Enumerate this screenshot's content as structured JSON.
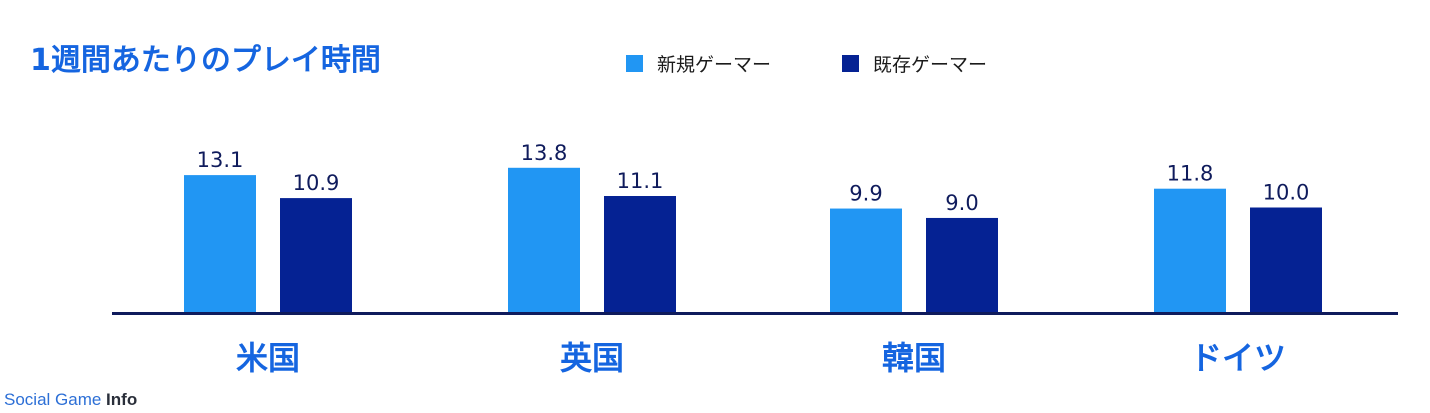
{
  "chart_data": {
    "type": "bar",
    "title": "1週間あたりのプレイ時間",
    "categories": [
      "米国",
      "英国",
      "韓国",
      "ドイツ"
    ],
    "series": [
      {
        "name": "新規ゲーマー",
        "values": [
          13.1,
          13.8,
          9.9,
          11.8
        ],
        "color": "#2196f3"
      },
      {
        "name": "既存ゲーマー",
        "values": [
          10.9,
          11.1,
          9.0,
          10.0
        ],
        "color": "#052293"
      }
    ],
    "value_labels": [
      [
        "13.1",
        "13.8",
        "9.9",
        "11.8"
      ],
      [
        "10.9",
        "11.1",
        "9.0",
        "10.0"
      ]
    ],
    "xlabel": "",
    "ylabel": "",
    "ylim": [
      0,
      14
    ],
    "grid": false,
    "legend": "top-center",
    "colors": {
      "title": "#1565e0",
      "category_label": "#1565e0",
      "value_label": "#0f1b5c",
      "axis": "#0f1b5c"
    }
  },
  "watermark": {
    "light": "Social Game ",
    "bold": "Info"
  }
}
